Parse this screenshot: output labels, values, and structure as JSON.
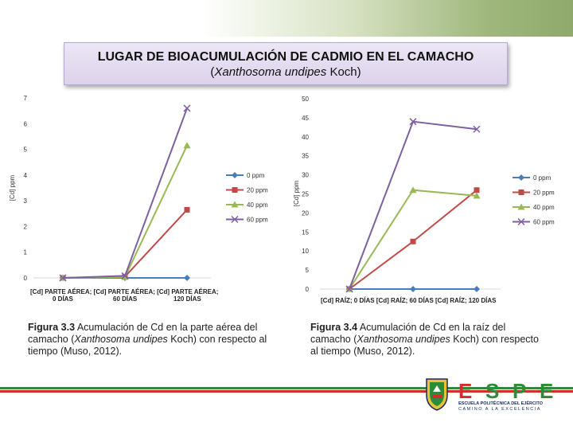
{
  "title": {
    "line1": "LUGAR DE BIOACUMULACIÓN DE CADMIO EN EL CAMACHO",
    "line2_open": "(",
    "line2_italic": "Xanthosoma undipes",
    "line2_rest": " Koch)"
  },
  "chart_data": [
    {
      "type": "line",
      "title": "",
      "xlabel": "",
      "ylabel": "[Cd] ppm",
      "ylim": [
        0,
        7
      ],
      "yticks": [
        "0",
        "1",
        "2",
        "3",
        "4",
        "5",
        "6",
        "7"
      ],
      "categories": [
        "[Cd] PARTE AÉREA; 0 DÍAS",
        "[Cd] PARTE AÉREA; 60 DÍAS",
        "[Cd] PARTE AÉREA; 120 DÍAS"
      ],
      "category_labels_line1": "[Cd] PARTE AÉREA; [Cd] PARTE AÉREA; [Cd] PARTE AÉREA;",
      "category_labels_line2": [
        "0 DÍAS",
        "60 DÍAS",
        "120 DÍAS"
      ],
      "series": [
        {
          "name": "0 ppm",
          "color": "#4a7ebb",
          "marker": "diamond",
          "values": [
            0,
            0,
            0
          ]
        },
        {
          "name": "20 ppm",
          "color": "#be4b48",
          "marker": "square",
          "values": [
            0,
            0.05,
            2.65
          ]
        },
        {
          "name": "40 ppm",
          "color": "#98b954",
          "marker": "triangle",
          "values": [
            0,
            0.03,
            5.15
          ]
        },
        {
          "name": "60 ppm",
          "color": "#7d60a0",
          "marker": "x",
          "values": [
            0,
            0.08,
            6.6
          ]
        }
      ],
      "legend": "right"
    },
    {
      "type": "line",
      "title": "",
      "xlabel": "",
      "ylabel": "[Cd] ppm",
      "ylim": [
        0,
        50
      ],
      "yticks": [
        "0",
        "5",
        "10",
        "15",
        "20",
        "25",
        "30",
        "35",
        "40",
        "45",
        "50"
      ],
      "categories": [
        "[Cd] RAÍZ; 0 DÍAS",
        "[Cd] RAÍZ; 60 DÍAS",
        "[Cd] RAÍZ; 120 DÍAS"
      ],
      "category_labels_line1": "[Cd] RAÍZ; 0 DÍAS [Cd] RAÍZ; 60 DÍAS [Cd] RAÍZ; 120 DÍAS",
      "series": [
        {
          "name": "0 ppm",
          "color": "#4a7ebb",
          "marker": "diamond",
          "values": [
            0,
            0,
            0
          ]
        },
        {
          "name": "20 ppm",
          "color": "#be4b48",
          "marker": "square",
          "values": [
            0,
            12.5,
            26
          ]
        },
        {
          "name": "40 ppm",
          "color": "#98b954",
          "marker": "triangle",
          "values": [
            0,
            26,
            24.5
          ]
        },
        {
          "name": "60 ppm",
          "color": "#7d60a0",
          "marker": "x",
          "values": [
            0,
            44,
            42
          ]
        }
      ],
      "legend": "right"
    }
  ],
  "captions": [
    {
      "label": "Figura 3.3",
      "text1": " Acumulación de Cd en la parte aérea del camacho (",
      "italic": "Xanthosoma undipes",
      "text2": " Koch) con respecto al tiempo (Muso, 2012)."
    },
    {
      "label": "Figura 3.4",
      "text1": " Acumulación de Cd en la raíz del camacho (",
      "italic": "Xanthosoma undipes",
      "text2": " Koch) con respecto al tiempo (Muso, 2012)."
    }
  ],
  "logo": {
    "letters": [
      "E",
      "S",
      "P",
      "E"
    ],
    "line1": "ESCUELA POLITÉCNICA DEL EJÉRCITO",
    "line2": "CAMINO A LA EXCELENCIA",
    "colors": {
      "red": "#d42b2b",
      "green": "#2e8b3a",
      "navy": "#1b2a5c"
    }
  }
}
